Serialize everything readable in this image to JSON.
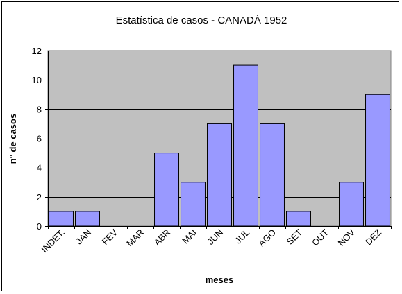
{
  "chart_data": {
    "type": "bar",
    "title": "Estatística de casos - CANADÁ 1952",
    "xlabel": "meses",
    "ylabel": "n° de casos",
    "categories": [
      "INDET.",
      "JAN",
      "FEV",
      "MAR",
      "ABR",
      "MAI",
      "JUN",
      "JUL",
      "AGO",
      "SET",
      "OUT",
      "NOV",
      "DEZ"
    ],
    "values": [
      1,
      1,
      0,
      0,
      5,
      3,
      7,
      11,
      7,
      1,
      0,
      3,
      9
    ],
    "ylim": [
      0,
      12
    ],
    "yticks": [
      0,
      2,
      4,
      6,
      8,
      10,
      12
    ],
    "grid": true,
    "legend": "none",
    "colors": {
      "bar_fill": "#9999ff",
      "bar_stroke": "#000000",
      "plot_background": "#c0c0c0",
      "gridline": "#000000"
    }
  }
}
